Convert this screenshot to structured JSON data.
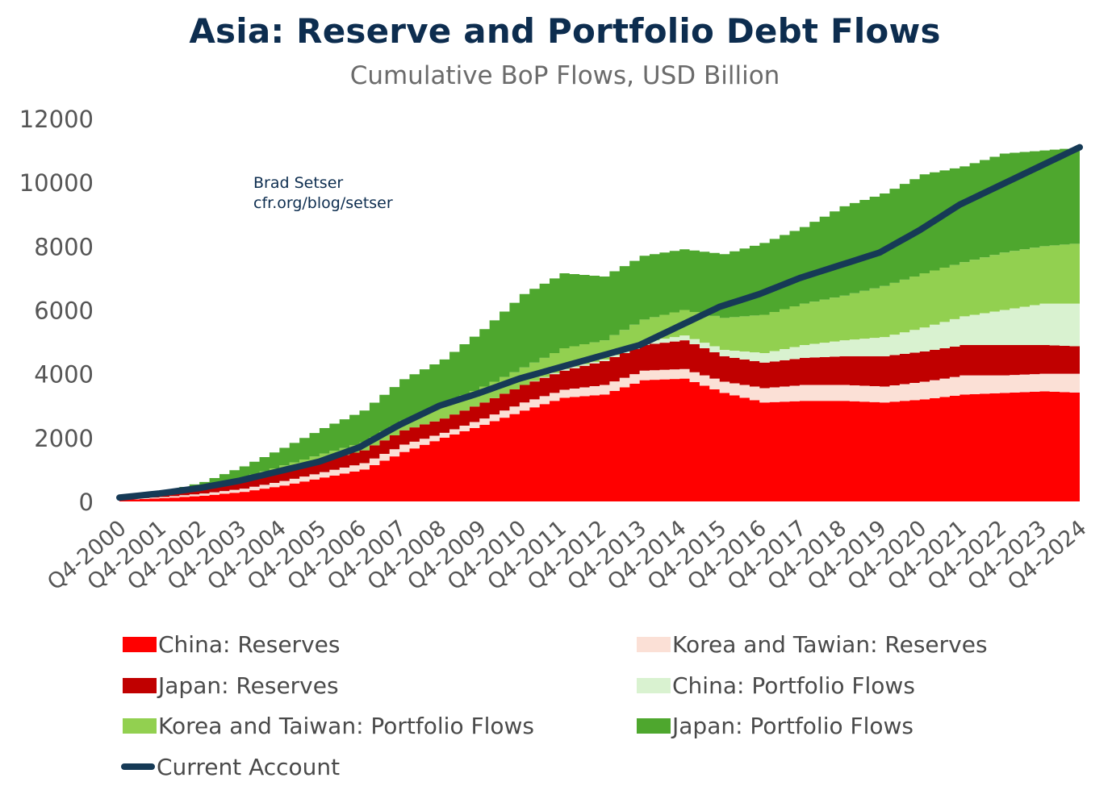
{
  "title": "Asia: Reserve and Portfolio Debt Flows",
  "subtitle": "Cumulative BoP Flows, USD Billion",
  "annotation": {
    "line1": "Brad Setser",
    "line2": "cfr.org/blog/setser"
  },
  "colors": {
    "china_reserves": "#ff0000",
    "japan_reserves": "#c00000",
    "korea_taiwan_reserves": "#fbe0d6",
    "china_portfolio": "#d9f2d0",
    "korea_taiwan_portfolio": "#92d050",
    "japan_portfolio": "#4ea72e",
    "current_account": "#163a56",
    "axis_text": "#555555"
  },
  "legend": [
    {
      "label": "China: Reserves",
      "key": "china_reserves",
      "kind": "area"
    },
    {
      "label": "Korea and Tawian: Reserves",
      "key": "korea_taiwan_reserves",
      "kind": "area"
    },
    {
      "label": "Japan: Reserves",
      "key": "japan_reserves",
      "kind": "area"
    },
    {
      "label": "China: Portfolio Flows",
      "key": "china_portfolio",
      "kind": "area"
    },
    {
      "label": "Korea and Taiwan: Portfolio Flows",
      "key": "korea_taiwan_portfolio",
      "kind": "area"
    },
    {
      "label": "Japan: Portfolio Flows",
      "key": "japan_portfolio",
      "kind": "area"
    },
    {
      "label": "Current Account",
      "key": "current_account",
      "kind": "line"
    }
  ],
  "chart_data": {
    "type": "area",
    "stacked": true,
    "step": true,
    "ylim": [
      0,
      12000
    ],
    "yticks": [
      0,
      2000,
      4000,
      6000,
      8000,
      10000,
      12000
    ],
    "x": [
      "Q4-2000",
      "Q4-2001",
      "Q4-2002",
      "Q4-2003",
      "Q4-2004",
      "Q4-2005",
      "Q4-2006",
      "Q4-2007",
      "Q4-2008",
      "Q4-2009",
      "Q4-2010",
      "Q4-2011",
      "Q4-2012",
      "Q4-2013",
      "Q4-2014",
      "Q4-2015",
      "Q4-2016",
      "Q4-2017",
      "Q4-2018",
      "Q4-2019",
      "Q4-2020",
      "Q4-2021",
      "Q4-2022",
      "Q4-2023",
      "Q4-2024"
    ],
    "grid": false,
    "series": [
      {
        "name": "China: Reserves",
        "key": "china_reserves",
        "values": [
          50,
          100,
          180,
          300,
          500,
          750,
          1000,
          1550,
          2000,
          2400,
          2850,
          3250,
          3350,
          3800,
          3850,
          3400,
          3100,
          3150,
          3150,
          3100,
          3200,
          3350,
          3400,
          3450,
          3400
        ]
      },
      {
        "name": "Korea and Tawian: Reserves",
        "key": "korea_taiwan_reserves",
        "values": [
          20,
          40,
          70,
          100,
          140,
          170,
          200,
          230,
          150,
          200,
          250,
          250,
          300,
          300,
          300,
          350,
          450,
          500,
          500,
          500,
          550,
          600,
          550,
          550,
          600
        ]
      },
      {
        "name": "Japan: Reserves",
        "key": "japan_reserves",
        "values": [
          30,
          80,
          150,
          250,
          350,
          400,
          400,
          450,
          450,
          500,
          550,
          600,
          750,
          800,
          900,
          800,
          800,
          850,
          900,
          950,
          950,
          950,
          950,
          900,
          850
        ]
      },
      {
        "name": "China: Portfolio Flows",
        "key": "china_portfolio",
        "values": [
          0,
          0,
          0,
          0,
          0,
          0,
          0,
          0,
          0,
          0,
          0,
          50,
          50,
          100,
          150,
          200,
          300,
          400,
          500,
          600,
          750,
          900,
          1100,
          1300,
          1350
        ]
      },
      {
        "name": "Korea and Taiwan: Portfolio Flows",
        "key": "korea_taiwan_portfolio",
        "values": [
          0,
          30,
          60,
          100,
          140,
          180,
          250,
          300,
          450,
          500,
          550,
          650,
          600,
          700,
          800,
          1000,
          1200,
          1300,
          1400,
          1600,
          1700,
          1700,
          1800,
          1800,
          1900
        ]
      },
      {
        "name": "Japan: Portfolio Flows",
        "key": "japan_portfolio",
        "values": [
          0,
          50,
          150,
          350,
          550,
          800,
          1000,
          1300,
          1400,
          1800,
          2300,
          2350,
          2000,
          2000,
          1900,
          2000,
          2250,
          2400,
          2800,
          2900,
          3100,
          3000,
          3100,
          3000,
          3000
        ]
      }
    ],
    "line": {
      "name": "Current Account",
      "key": "current_account",
      "values": [
        120,
        250,
        420,
        650,
        950,
        1250,
        1700,
        2400,
        3000,
        3400,
        3850,
        4200,
        4550,
        4900,
        5500,
        6100,
        6500,
        7000,
        7400,
        7800,
        8500,
        9300,
        9900,
        10500,
        11100
      ]
    }
  }
}
